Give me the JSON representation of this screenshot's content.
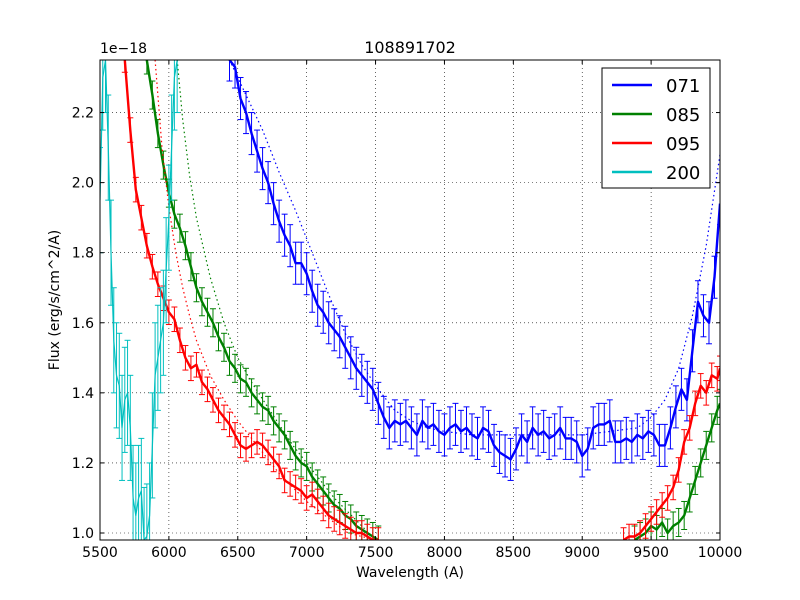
{
  "chart_data": {
    "type": "line",
    "title": "108891702",
    "xlabel": "Wavelength (A)",
    "ylabel": "Flux (erg/s/cm^2/A)",
    "offset_text": "1e−18",
    "xlim": [
      5500,
      10000
    ],
    "ylim": [
      0.98,
      2.35
    ],
    "xticks": [
      5500,
      6000,
      6500,
      7000,
      7500,
      8000,
      8500,
      9000,
      9500,
      10000
    ],
    "xtick_labels": [
      "5500",
      "6000",
      "6500",
      "7000",
      "7500",
      "8000",
      "8500",
      "9000",
      "9500",
      "10000"
    ],
    "yticks": [
      1.0,
      1.2,
      1.4,
      1.6,
      1.8,
      2.0,
      2.2
    ],
    "ytick_labels": [
      "1.0",
      "1.2",
      "1.4",
      "1.6",
      "1.8",
      "2.0",
      "2.2"
    ],
    "grid": true,
    "legend_position": "top-right",
    "series": [
      {
        "name": "071",
        "color": "#0000ff",
        "x": [
          6440,
          6480,
          6520,
          6560,
          6600,
          6640,
          6680,
          6720,
          6760,
          6800,
          6840,
          6880,
          6920,
          6960,
          7000,
          7040,
          7080,
          7120,
          7160,
          7200,
          7240,
          7280,
          7320,
          7360,
          7400,
          7440,
          7480,
          7520,
          7560,
          7600,
          7640,
          7680,
          7720,
          7760,
          7800,
          7840,
          7880,
          7920,
          7960,
          8000,
          8040,
          8080,
          8120,
          8160,
          8200,
          8240,
          8280,
          8320,
          8360,
          8400,
          8440,
          8480,
          8520,
          8560,
          8600,
          8640,
          8680,
          8720,
          8760,
          8800,
          8840,
          8880,
          8920,
          8960,
          9000,
          9040,
          9080,
          9120,
          9160,
          9200,
          9240,
          9280,
          9320,
          9360,
          9400,
          9440,
          9480,
          9520,
          9560,
          9600,
          9640,
          9680,
          9720,
          9760,
          9800,
          9840,
          9880,
          9920,
          9960,
          10000
        ],
        "y": [
          2.35,
          2.33,
          2.24,
          2.2,
          2.14,
          2.09,
          2.04,
          2.0,
          1.94,
          1.89,
          1.85,
          1.82,
          1.77,
          1.77,
          1.74,
          1.69,
          1.65,
          1.63,
          1.6,
          1.58,
          1.56,
          1.53,
          1.5,
          1.47,
          1.45,
          1.43,
          1.41,
          1.37,
          1.33,
          1.3,
          1.32,
          1.31,
          1.32,
          1.3,
          1.28,
          1.32,
          1.3,
          1.31,
          1.29,
          1.28,
          1.3,
          1.31,
          1.29,
          1.3,
          1.28,
          1.27,
          1.3,
          1.29,
          1.25,
          1.23,
          1.22,
          1.21,
          1.24,
          1.28,
          1.26,
          1.3,
          1.28,
          1.29,
          1.27,
          1.28,
          1.3,
          1.27,
          1.27,
          1.26,
          1.22,
          1.24,
          1.3,
          1.31,
          1.31,
          1.32,
          1.26,
          1.26,
          1.27,
          1.26,
          1.28,
          1.27,
          1.29,
          1.28,
          1.25,
          1.25,
          1.3,
          1.36,
          1.41,
          1.38,
          1.52,
          1.66,
          1.62,
          1.6,
          1.73,
          1.94
        ],
        "err": 0.06,
        "model_x": [
          6440,
          6560,
          6680,
          6800,
          6920,
          7040,
          7160,
          7280,
          7400,
          7520,
          7640,
          7760,
          7880,
          8000,
          8200,
          8400,
          8600,
          8800,
          9000,
          9200,
          9400,
          9500,
          9600,
          9700,
          9800,
          9900,
          10000
        ],
        "model_y": [
          2.35,
          2.25,
          2.15,
          2.03,
          1.92,
          1.8,
          1.68,
          1.57,
          1.48,
          1.41,
          1.35,
          1.32,
          1.3,
          1.29,
          1.28,
          1.28,
          1.28,
          1.28,
          1.28,
          1.29,
          1.3,
          1.33,
          1.38,
          1.47,
          1.62,
          1.82,
          2.08
        ]
      },
      {
        "name": "085",
        "color": "#008000",
        "x": [
          5840,
          5880,
          5920,
          5960,
          6000,
          6040,
          6080,
          6120,
          6160,
          6200,
          6240,
          6280,
          6320,
          6360,
          6400,
          6440,
          6480,
          6520,
          6560,
          6600,
          6640,
          6680,
          6720,
          6760,
          6800,
          6840,
          6880,
          6920,
          6960,
          7000,
          7040,
          7080,
          7120,
          7160,
          7200,
          7240,
          7280,
          7320,
          7360,
          7400,
          7440,
          7480,
          7520
        ],
        "y": [
          2.35,
          2.25,
          2.14,
          2.05,
          1.97,
          1.91,
          1.87,
          1.82,
          1.76,
          1.7,
          1.66,
          1.63,
          1.6,
          1.56,
          1.53,
          1.49,
          1.47,
          1.44,
          1.43,
          1.4,
          1.38,
          1.36,
          1.35,
          1.32,
          1.3,
          1.28,
          1.25,
          1.22,
          1.2,
          1.19,
          1.16,
          1.14,
          1.12,
          1.1,
          1.08,
          1.07,
          1.05,
          1.04,
          1.02,
          1.01,
          1.0,
          0.99,
          0.98
        ],
        "err": 0.04,
        "model_x": [
          6060,
          6100,
          6150,
          6200,
          6300,
          6400,
          6500,
          6600,
          6700,
          6800,
          6900,
          7000,
          7100,
          7200,
          7300,
          7400,
          7500
        ],
        "model_y": [
          2.35,
          2.18,
          2.02,
          1.9,
          1.73,
          1.6,
          1.5,
          1.43,
          1.37,
          1.31,
          1.25,
          1.2,
          1.15,
          1.1,
          1.06,
          1.02,
          0.98
        ],
        "x2": [
          9380,
          9420,
          9460,
          9500,
          9540,
          9580,
          9620,
          9660,
          9700,
          9740,
          9780,
          9820,
          9860,
          9900,
          9940,
          9980,
          10000
        ],
        "y2": [
          0.98,
          0.99,
          1.0,
          1.02,
          1.01,
          1.03,
          1.0,
          1.02,
          1.03,
          1.05,
          1.1,
          1.15,
          1.2,
          1.25,
          1.3,
          1.35,
          1.37
        ]
      },
      {
        "name": "095",
        "color": "#ff0000",
        "x": [
          5680,
          5720,
          5760,
          5800,
          5840,
          5880,
          5920,
          5960,
          6000,
          6040,
          6080,
          6120,
          6160,
          6200,
          6240,
          6280,
          6320,
          6360,
          6400,
          6440,
          6480,
          6520,
          6560,
          6600,
          6640,
          6680,
          6720,
          6760,
          6800,
          6840,
          6880,
          6920,
          6960,
          7000,
          7040,
          7080,
          7120,
          7160,
          7200,
          7240,
          7280,
          7320,
          7360,
          7400,
          7440,
          7480,
          7520
        ],
        "y": [
          2.35,
          2.15,
          1.98,
          1.9,
          1.82,
          1.76,
          1.71,
          1.67,
          1.63,
          1.61,
          1.55,
          1.5,
          1.47,
          1.48,
          1.43,
          1.41,
          1.38,
          1.35,
          1.33,
          1.31,
          1.28,
          1.25,
          1.24,
          1.25,
          1.26,
          1.25,
          1.23,
          1.21,
          1.19,
          1.15,
          1.14,
          1.13,
          1.12,
          1.1,
          1.11,
          1.09,
          1.07,
          1.05,
          1.04,
          1.03,
          1.02,
          1.01,
          1.0,
          1.0,
          0.99,
          0.98,
          0.98
        ],
        "err": 0.035,
        "model_x": [
          5900,
          5950,
          6000,
          6050,
          6100,
          6150,
          6200,
          6300,
          6400,
          6500,
          6600,
          6700,
          6800,
          6900,
          7000,
          7100,
          7200,
          7300,
          7400,
          7500
        ],
        "model_y": [
          2.35,
          2.1,
          1.93,
          1.8,
          1.7,
          1.62,
          1.55,
          1.45,
          1.38,
          1.32,
          1.27,
          1.22,
          1.17,
          1.13,
          1.09,
          1.06,
          1.03,
          1.0,
          0.99,
          0.98
        ],
        "x2": [
          9300,
          9340,
          9380,
          9420,
          9460,
          9500,
          9540,
          9580,
          9620,
          9660,
          9700,
          9740,
          9780,
          9820,
          9860,
          9900,
          9940,
          9980,
          10000
        ],
        "y2": [
          0.98,
          0.99,
          0.99,
          1.0,
          1.02,
          1.04,
          1.06,
          1.08,
          1.1,
          1.13,
          1.18,
          1.26,
          1.3,
          1.37,
          1.42,
          1.4,
          1.45,
          1.44,
          1.47
        ]
      },
      {
        "name": "200",
        "color": "#00bfbf",
        "x": [
          5500,
          5520,
          5540,
          5560,
          5580,
          5600,
          5620,
          5640,
          5660,
          5680,
          5700,
          5720,
          5740,
          5760,
          5780,
          5800,
          5820,
          5840,
          5860,
          5880,
          5900,
          5920,
          5940,
          5960,
          5980,
          6000,
          6020,
          6040,
          6060
        ],
        "y": [
          1.95,
          2.3,
          2.35,
          2.1,
          1.8,
          1.55,
          1.45,
          1.42,
          1.3,
          1.38,
          1.4,
          1.3,
          1.1,
          1.05,
          1.1,
          1.12,
          0.98,
          0.99,
          1.05,
          1.25,
          1.45,
          1.5,
          1.55,
          1.6,
          1.75,
          1.9,
          2.1,
          2.3,
          2.35
        ],
        "err": 0.15
      }
    ]
  }
}
